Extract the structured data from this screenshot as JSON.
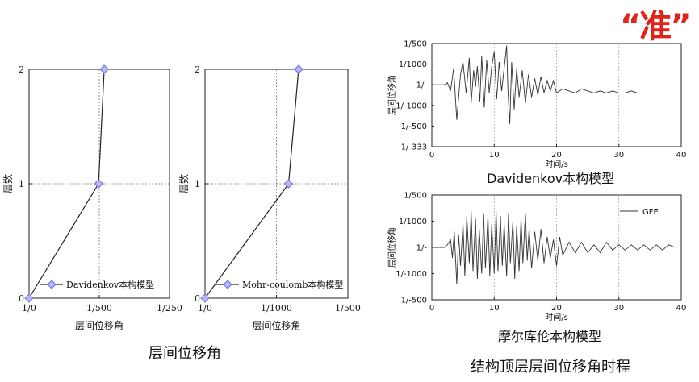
{
  "stamp": {
    "text": "“准”",
    "color": "#e0241b"
  },
  "captions": {
    "left": "层间位移角",
    "right_top": "Davidenkov本构模型",
    "right_bottom": "摩尔库伦本构模型",
    "right_main": "结构顶层层间位移角时程"
  },
  "chart_data": [
    {
      "type": "line",
      "title": "",
      "xlabel": "层间位移角",
      "ylabel": "层数",
      "x_tick_labels": [
        "1/0",
        "1/500",
        "1/250"
      ],
      "xlim": [
        0,
        0.004
      ],
      "y_ticks": [
        0,
        1,
        2
      ],
      "ylim": [
        0,
        2
      ],
      "grid": "dashed at x=1/500 and y=1",
      "legend": "bottom-left",
      "series": [
        {
          "name": "Davidenkov本构模型",
          "marker": "diamond",
          "color": "#6a6ae0",
          "x": [
            0,
            0.00198,
            0.00214
          ],
          "y": [
            0,
            1,
            2
          ]
        }
      ]
    },
    {
      "type": "line",
      "title": "",
      "xlabel": "层间位移角",
      "ylabel": "层数",
      "x_tick_labels": [
        "1/0",
        "1/1000",
        "1/500"
      ],
      "xlim": [
        0,
        0.002
      ],
      "y_ticks": [
        0,
        1,
        2
      ],
      "ylim": [
        0,
        2
      ],
      "grid": "dashed at x=1/1000 and y=1",
      "legend": "bottom-left",
      "series": [
        {
          "name": "Mohr-coulomb本构模型",
          "marker": "diamond",
          "color": "#6a6ae0",
          "x": [
            0,
            0.00117,
            0.00131
          ],
          "y": [
            0,
            1,
            2
          ]
        }
      ]
    },
    {
      "type": "line",
      "title": "",
      "xlabel": "时间/s",
      "ylabel": "层间位移角",
      "x_ticks": [
        0,
        10,
        20,
        30,
        40
      ],
      "xlim": [
        0,
        40
      ],
      "y_tick_labels": [
        "1/500",
        "1/1000",
        "1/-",
        "1/-1000",
        "1/-500",
        "1/-333"
      ],
      "y_tick_values": [
        0.002,
        0.001,
        0,
        -0.001,
        -0.002,
        -0.003
      ],
      "ylim": [
        -0.003,
        0.002
      ],
      "grid": "dashed at x=10,20,30",
      "series": [
        {
          "name": "",
          "color": "#333333",
          "t": [
            0,
            2,
            2.5,
            3,
            3.5,
            4,
            4.3,
            4.6,
            5,
            5.5,
            6,
            6.3,
            6.7,
            7,
            7.3,
            7.7,
            8,
            8.4,
            8.8,
            9.2,
            9.6,
            10,
            10.4,
            10.8,
            11.2,
            11.6,
            12,
            12.2,
            12.5,
            12.8,
            13.2,
            13.6,
            14,
            14.5,
            15,
            15.5,
            16,
            16.5,
            17,
            17.5,
            18,
            18.5,
            19,
            19.5,
            20,
            21,
            22,
            23,
            24,
            25,
            26,
            27,
            28,
            29,
            30,
            31,
            32,
            33,
            34,
            35,
            36,
            37,
            38,
            39,
            40
          ],
          "v": [
            0,
            0,
            0.0001,
            -0.0003,
            0.0008,
            -0.0017,
            -0.0006,
            0.0005,
            0.0011,
            -0.0004,
            0.0013,
            -0.0009,
            0.0007,
            -0.0001,
            0.0009,
            -0.0008,
            0.0014,
            -0.0011,
            0.0012,
            -0.0004,
            0.0009,
            0.0016,
            -0.0007,
            0.0011,
            -0.0003,
            0.0008,
            0.0019,
            -0.0002,
            -0.0019,
            0.0011,
            -0.0012,
            0.0008,
            -0.0006,
            0.0007,
            -0.0009,
            0.0005,
            -0.0006,
            0.0003,
            -0.0005,
            0.0004,
            -0.0004,
            0.0002,
            -0.0003,
            0.0002,
            -0.0004,
            -0.0002,
            -0.0003,
            -0.0004,
            -0.0002,
            -0.0003,
            -0.0004,
            -0.0003,
            -0.0004,
            -0.0003,
            -0.0004,
            -0.0004,
            -0.0003,
            -0.0004,
            -0.0004,
            -0.0004,
            -0.0004,
            -0.0004,
            -0.0004,
            -0.0004,
            -0.0004
          ]
        }
      ]
    },
    {
      "type": "line",
      "title": "",
      "xlabel": "时间/s",
      "ylabel": "层间位移角",
      "x_ticks": [
        0,
        10,
        20,
        30,
        40
      ],
      "xlim": [
        0,
        40
      ],
      "y_tick_labels": [
        "1/500",
        "1/1000",
        "1/-",
        "1/-1000",
        "1/-500"
      ],
      "y_tick_values": [
        0.002,
        0.001,
        0,
        -0.001,
        -0.002
      ],
      "ylim": [
        -0.002,
        0.002
      ],
      "grid": "dashed at x=10,20,30",
      "legend": "top-right",
      "series": [
        {
          "name": "GFE",
          "color": "#333333",
          "t": [
            0,
            2,
            2.5,
            3,
            3.3,
            3.6,
            4,
            4.3,
            4.6,
            5,
            5.3,
            5.6,
            6,
            6.3,
            6.6,
            7,
            7.3,
            7.6,
            8,
            8.3,
            8.6,
            9,
            9.3,
            9.6,
            10,
            10.3,
            10.6,
            11,
            11.3,
            11.6,
            12,
            12.3,
            12.6,
            13,
            13.3,
            13.6,
            14,
            14.3,
            14.6,
            15,
            15.3,
            15.6,
            16,
            16.5,
            17,
            17.5,
            18,
            18.5,
            19,
            19.5,
            20,
            20.5,
            21,
            22,
            23,
            24,
            25,
            26,
            27,
            28,
            29,
            30,
            31,
            32,
            33,
            34,
            35,
            36,
            37,
            38,
            39,
            40
          ],
          "v": [
            0,
            0,
            0.0001,
            0.0003,
            -0.0004,
            0.0006,
            -0.0014,
            0.0005,
            -0.0007,
            0.0009,
            -0.0011,
            0.0012,
            -0.0006,
            0.0014,
            -0.0009,
            0.0011,
            -0.0012,
            0.0007,
            -0.001,
            0.0013,
            -0.0008,
            0.0012,
            -0.0011,
            0.0009,
            -0.001,
            0.0014,
            -0.0009,
            0.0012,
            -0.0007,
            0.0009,
            -0.0011,
            0.0013,
            -0.0006,
            0.001,
            -0.0012,
            0.0008,
            -0.0009,
            0.0011,
            -0.0006,
            0.0013,
            -0.0005,
            0.0007,
            -0.0008,
            0.0006,
            -0.0005,
            0.0007,
            -0.0006,
            0.0004,
            -0.0004,
            0.0003,
            -0.0007,
            0.0004,
            -0.0003,
            0.0002,
            -0.0002,
            0.0002,
            -0.0002,
            0.0001,
            -0.0002,
            0.0002,
            -0.0001,
            0.0001,
            -0.0001,
            0.0001,
            -0.0001,
            0.0001,
            -0.0001,
            0.0001,
            -0.0001,
            0.0001,
            0
          ]
        }
      ]
    }
  ]
}
